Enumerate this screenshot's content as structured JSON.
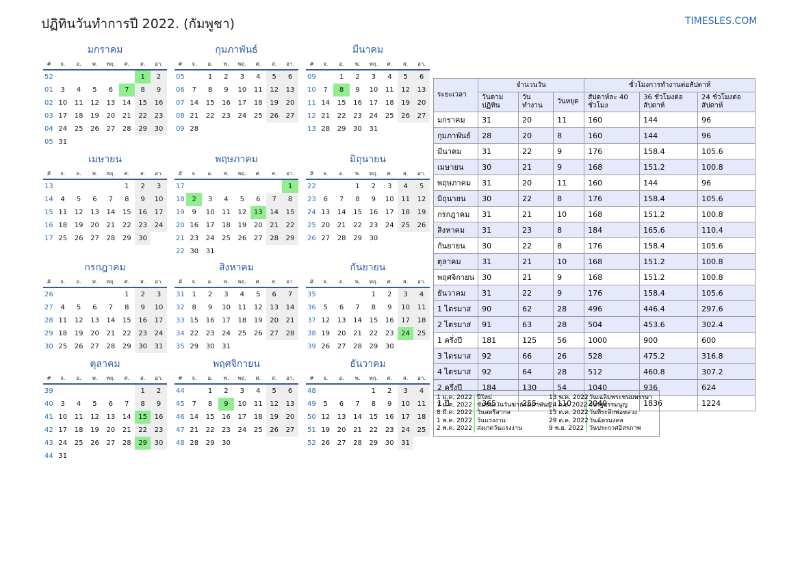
{
  "header": {
    "title": "ปฏิทินวันทำการปี 2022. (กัมพูชา)",
    "brand": "TIMESLES.COM"
  },
  "weekday_headers": [
    "#",
    "จ.",
    "อ.",
    "พ.",
    "พฤ.",
    "ศ.",
    "ส.",
    "อา."
  ],
  "months": [
    {
      "name": "มกราคม",
      "weeks": [
        {
          "w": "52",
          "d": [
            "",
            "",
            "",
            "",
            "",
            "1",
            "2"
          ]
        },
        {
          "w": "01",
          "d": [
            "3",
            "4",
            "5",
            "6",
            "7",
            "8",
            "9"
          ]
        },
        {
          "w": "02",
          "d": [
            "10",
            "11",
            "12",
            "13",
            "14",
            "15",
            "16"
          ]
        },
        {
          "w": "03",
          "d": [
            "17",
            "18",
            "19",
            "20",
            "21",
            "22",
            "23"
          ]
        },
        {
          "w": "04",
          "d": [
            "24",
            "25",
            "26",
            "27",
            "28",
            "29",
            "30"
          ]
        },
        {
          "w": "05",
          "d": [
            "31",
            "",
            "",
            "",
            "",
            "",
            ""
          ]
        }
      ],
      "holidays": [
        "1",
        "7"
      ]
    },
    {
      "name": "กุมภาพันธ์",
      "weeks": [
        {
          "w": "05",
          "d": [
            "",
            "1",
            "2",
            "3",
            "4",
            "5",
            "6"
          ]
        },
        {
          "w": "06",
          "d": [
            "7",
            "8",
            "9",
            "10",
            "11",
            "12",
            "13"
          ]
        },
        {
          "w": "07",
          "d": [
            "14",
            "15",
            "16",
            "17",
            "18",
            "19",
            "20"
          ]
        },
        {
          "w": "08",
          "d": [
            "21",
            "22",
            "23",
            "24",
            "25",
            "26",
            "27"
          ]
        },
        {
          "w": "09",
          "d": [
            "28",
            "",
            "",
            "",
            "",
            "",
            ""
          ]
        }
      ],
      "holidays": []
    },
    {
      "name": "มีนาคม",
      "weeks": [
        {
          "w": "09",
          "d": [
            "",
            "1",
            "2",
            "3",
            "4",
            "5",
            "6"
          ]
        },
        {
          "w": "10",
          "d": [
            "7",
            "8",
            "9",
            "10",
            "11",
            "12",
            "13"
          ]
        },
        {
          "w": "11",
          "d": [
            "14",
            "15",
            "16",
            "17",
            "18",
            "19",
            "20"
          ]
        },
        {
          "w": "12",
          "d": [
            "21",
            "22",
            "23",
            "24",
            "25",
            "26",
            "27"
          ]
        },
        {
          "w": "13",
          "d": [
            "28",
            "29",
            "30",
            "31",
            "",
            "",
            ""
          ]
        }
      ],
      "holidays": [
        "8"
      ]
    },
    {
      "name": "เมษายน",
      "weeks": [
        {
          "w": "13",
          "d": [
            "",
            "",
            "",
            "",
            "1",
            "2",
            "3"
          ]
        },
        {
          "w": "14",
          "d": [
            "4",
            "5",
            "6",
            "7",
            "8",
            "9",
            "10"
          ]
        },
        {
          "w": "15",
          "d": [
            "11",
            "12",
            "13",
            "14",
            "15",
            "16",
            "17"
          ]
        },
        {
          "w": "16",
          "d": [
            "18",
            "19",
            "20",
            "21",
            "22",
            "23",
            "24"
          ]
        },
        {
          "w": "17",
          "d": [
            "25",
            "26",
            "27",
            "28",
            "29",
            "30",
            ""
          ]
        }
      ],
      "holidays": []
    },
    {
      "name": "พฤษภาคม",
      "weeks": [
        {
          "w": "17",
          "d": [
            "",
            "",
            "",
            "",
            "",
            "",
            "1"
          ]
        },
        {
          "w": "18",
          "d": [
            "2",
            "3",
            "4",
            "5",
            "6",
            "7",
            "8"
          ]
        },
        {
          "w": "19",
          "d": [
            "9",
            "10",
            "11",
            "12",
            "13",
            "14",
            "15"
          ]
        },
        {
          "w": "20",
          "d": [
            "16",
            "17",
            "18",
            "19",
            "20",
            "21",
            "22"
          ]
        },
        {
          "w": "21",
          "d": [
            "23",
            "24",
            "25",
            "26",
            "27",
            "28",
            "29"
          ]
        },
        {
          "w": "22",
          "d": [
            "30",
            "31",
            "",
            "",
            "",
            "",
            ""
          ]
        }
      ],
      "holidays": [
        "1",
        "2",
        "13"
      ]
    },
    {
      "name": "มิถุนายน",
      "weeks": [
        {
          "w": "22",
          "d": [
            "",
            "",
            "1",
            "2",
            "3",
            "4",
            "5"
          ]
        },
        {
          "w": "23",
          "d": [
            "6",
            "7",
            "8",
            "9",
            "10",
            "11",
            "12"
          ]
        },
        {
          "w": "24",
          "d": [
            "13",
            "14",
            "15",
            "16",
            "17",
            "18",
            "19"
          ]
        },
        {
          "w": "25",
          "d": [
            "20",
            "21",
            "22",
            "23",
            "24",
            "25",
            "26"
          ]
        },
        {
          "w": "26",
          "d": [
            "27",
            "28",
            "29",
            "30",
            "",
            "",
            ""
          ]
        }
      ],
      "holidays": []
    },
    {
      "name": "กรกฎาคม",
      "weeks": [
        {
          "w": "26",
          "d": [
            "",
            "",
            "",
            "",
            "1",
            "2",
            "3"
          ]
        },
        {
          "w": "27",
          "d": [
            "4",
            "5",
            "6",
            "7",
            "8",
            "9",
            "10"
          ]
        },
        {
          "w": "28",
          "d": [
            "11",
            "12",
            "13",
            "14",
            "15",
            "16",
            "17"
          ]
        },
        {
          "w": "29",
          "d": [
            "18",
            "19",
            "20",
            "21",
            "22",
            "23",
            "24"
          ]
        },
        {
          "w": "30",
          "d": [
            "25",
            "26",
            "27",
            "28",
            "29",
            "30",
            "31"
          ]
        }
      ],
      "holidays": []
    },
    {
      "name": "สิงหาคม",
      "weeks": [
        {
          "w": "31",
          "d": [
            "1",
            "2",
            "3",
            "4",
            "5",
            "6",
            "7"
          ]
        },
        {
          "w": "32",
          "d": [
            "8",
            "9",
            "10",
            "11",
            "12",
            "13",
            "14"
          ]
        },
        {
          "w": "33",
          "d": [
            "15",
            "16",
            "17",
            "18",
            "19",
            "20",
            "21"
          ]
        },
        {
          "w": "34",
          "d": [
            "22",
            "23",
            "24",
            "25",
            "26",
            "27",
            "28"
          ]
        },
        {
          "w": "35",
          "d": [
            "29",
            "30",
            "31",
            "",
            "",
            "",
            ""
          ]
        }
      ],
      "holidays": []
    },
    {
      "name": "กันยายน",
      "weeks": [
        {
          "w": "35",
          "d": [
            "",
            "",
            "",
            "1",
            "2",
            "3",
            "4"
          ]
        },
        {
          "w": "36",
          "d": [
            "5",
            "6",
            "7",
            "8",
            "9",
            "10",
            "11"
          ]
        },
        {
          "w": "37",
          "d": [
            "12",
            "13",
            "14",
            "15",
            "16",
            "17",
            "18"
          ]
        },
        {
          "w": "38",
          "d": [
            "19",
            "20",
            "21",
            "22",
            "23",
            "24",
            "25"
          ]
        },
        {
          "w": "39",
          "d": [
            "26",
            "27",
            "28",
            "29",
            "30",
            "",
            ""
          ]
        }
      ],
      "holidays": [
        "24"
      ]
    },
    {
      "name": "ตุลาคม",
      "weeks": [
        {
          "w": "39",
          "d": [
            "",
            "",
            "",
            "",
            "",
            "1",
            "2"
          ]
        },
        {
          "w": "40",
          "d": [
            "3",
            "4",
            "5",
            "6",
            "7",
            "8",
            "9"
          ]
        },
        {
          "w": "41",
          "d": [
            "10",
            "11",
            "12",
            "13",
            "14",
            "15",
            "16"
          ]
        },
        {
          "w": "42",
          "d": [
            "17",
            "18",
            "19",
            "20",
            "21",
            "22",
            "23"
          ]
        },
        {
          "w": "43",
          "d": [
            "24",
            "25",
            "26",
            "27",
            "28",
            "29",
            "30"
          ]
        },
        {
          "w": "44",
          "d": [
            "31",
            "",
            "",
            "",
            "",
            "",
            ""
          ]
        }
      ],
      "holidays": [
        "15",
        "29"
      ]
    },
    {
      "name": "พฤศจิกายน",
      "weeks": [
        {
          "w": "44",
          "d": [
            "",
            "1",
            "2",
            "3",
            "4",
            "5",
            "6"
          ]
        },
        {
          "w": "45",
          "d": [
            "7",
            "8",
            "9",
            "10",
            "11",
            "12",
            "13"
          ]
        },
        {
          "w": "46",
          "d": [
            "14",
            "15",
            "16",
            "17",
            "18",
            "19",
            "20"
          ]
        },
        {
          "w": "47",
          "d": [
            "21",
            "22",
            "23",
            "24",
            "25",
            "26",
            "27"
          ]
        },
        {
          "w": "48",
          "d": [
            "28",
            "29",
            "30",
            "",
            "",
            "",
            ""
          ]
        }
      ],
      "holidays": [
        "9"
      ]
    },
    {
      "name": "ธันวาคม",
      "weeks": [
        {
          "w": "48",
          "d": [
            "",
            "",
            "",
            "1",
            "2",
            "3",
            "4"
          ]
        },
        {
          "w": "49",
          "d": [
            "5",
            "6",
            "7",
            "8",
            "9",
            "10",
            "11"
          ]
        },
        {
          "w": "50",
          "d": [
            "12",
            "13",
            "14",
            "15",
            "16",
            "17",
            "18"
          ]
        },
        {
          "w": "51",
          "d": [
            "19",
            "20",
            "21",
            "22",
            "23",
            "24",
            "25"
          ]
        },
        {
          "w": "52",
          "d": [
            "26",
            "27",
            "28",
            "29",
            "30",
            "31",
            ""
          ]
        }
      ],
      "holidays": []
    }
  ],
  "stats_table": {
    "period_header": "ระยะเวลา",
    "days_group": "จำนวนวัน",
    "hours_group": "ชั่วโมงการทำงานต่อสัปดาห์",
    "columns": [
      "วันตามปฏิทิน",
      "วันทำงาน",
      "วันหยุด",
      "สัปดาห์ละ 40 ชั่วโมง",
      "36 ชั่วโมงต่อสัปดาห์",
      "24 ชั่วโมงต่อสัปดาห์"
    ],
    "rows": [
      [
        "มกราคม",
        "31",
        "20",
        "11",
        "160",
        "144",
        "96"
      ],
      [
        "กุมภาพันธ์",
        "28",
        "20",
        "8",
        "160",
        "144",
        "96"
      ],
      [
        "มีนาคม",
        "31",
        "22",
        "9",
        "176",
        "158.4",
        "105.6"
      ],
      [
        "เมษายน",
        "30",
        "21",
        "9",
        "168",
        "151.2",
        "100.8"
      ],
      [
        "พฤษภาคม",
        "31",
        "20",
        "11",
        "160",
        "144",
        "96"
      ],
      [
        "มิถุนายน",
        "30",
        "22",
        "8",
        "176",
        "158.4",
        "105.6"
      ],
      [
        "กรกฎาคม",
        "31",
        "21",
        "10",
        "168",
        "151.2",
        "100.8"
      ],
      [
        "สิงหาคม",
        "31",
        "23",
        "8",
        "184",
        "165.6",
        "110.4"
      ],
      [
        "กันยายน",
        "30",
        "22",
        "8",
        "176",
        "158.4",
        "105.6"
      ],
      [
        "ตุลาคม",
        "31",
        "21",
        "10",
        "168",
        "151.2",
        "100.8"
      ],
      [
        "พฤศจิกายน",
        "30",
        "21",
        "9",
        "168",
        "151.2",
        "100.8"
      ],
      [
        "ธันวาคม",
        "31",
        "22",
        "9",
        "176",
        "158.4",
        "105.6"
      ],
      [
        "1 ไตรมาส",
        "90",
        "62",
        "28",
        "496",
        "446.4",
        "297.6"
      ],
      [
        "2 ไตรมาส",
        "91",
        "63",
        "28",
        "504",
        "453.6",
        "302.4"
      ],
      [
        "1 ครึ่งปี",
        "181",
        "125",
        "56",
        "1000",
        "900",
        "600"
      ],
      [
        "3 ไตรมาส",
        "92",
        "66",
        "26",
        "528",
        "475.2",
        "316.8"
      ],
      [
        "4 ไตรมาส",
        "92",
        "64",
        "28",
        "512",
        "460.8",
        "307.2"
      ],
      [
        "2 ครึ่งปี",
        "184",
        "130",
        "54",
        "1040",
        "936",
        "624"
      ],
      [
        "1 ปี",
        "365",
        "255",
        "110",
        "2040",
        "1836",
        "1224"
      ]
    ]
  },
  "holiday_list": {
    "left": [
      {
        "date": "1 ม.ค. 2022",
        "name": "ปีใหม่"
      },
      {
        "date": "7 ม.ค. 2022",
        "name": "ชัยชนะในวันฆ่าล้างเผ่าพันธุ์"
      },
      {
        "date": "8 มี.ค. 2022",
        "name": "วันสตรีสากล"
      },
      {
        "date": "1 พ.ค. 2022",
        "name": "วันแรงงาน"
      },
      {
        "date": "2 พ.ค. 2022",
        "name": "ส่งเกตวันแรงงาน"
      }
    ],
    "right": [
      {
        "date": "13 พ.ค. 2022",
        "name": "วันเฉลิมพระชนมพรรษา"
      },
      {
        "date": "24 ก.ย. 2022",
        "name": "วันรัฐธรรมนูญ"
      },
      {
        "date": "15 ต.ค. 2022",
        "name": "วันที่ระลึกพ่อหลวง"
      },
      {
        "date": "29 ต.ค. 2022",
        "name": "วันฉัตรมงคล"
      },
      {
        "date": "9 พ.ย. 2022",
        "name": "วันประกาศอิสรภาพ"
      }
    ]
  }
}
